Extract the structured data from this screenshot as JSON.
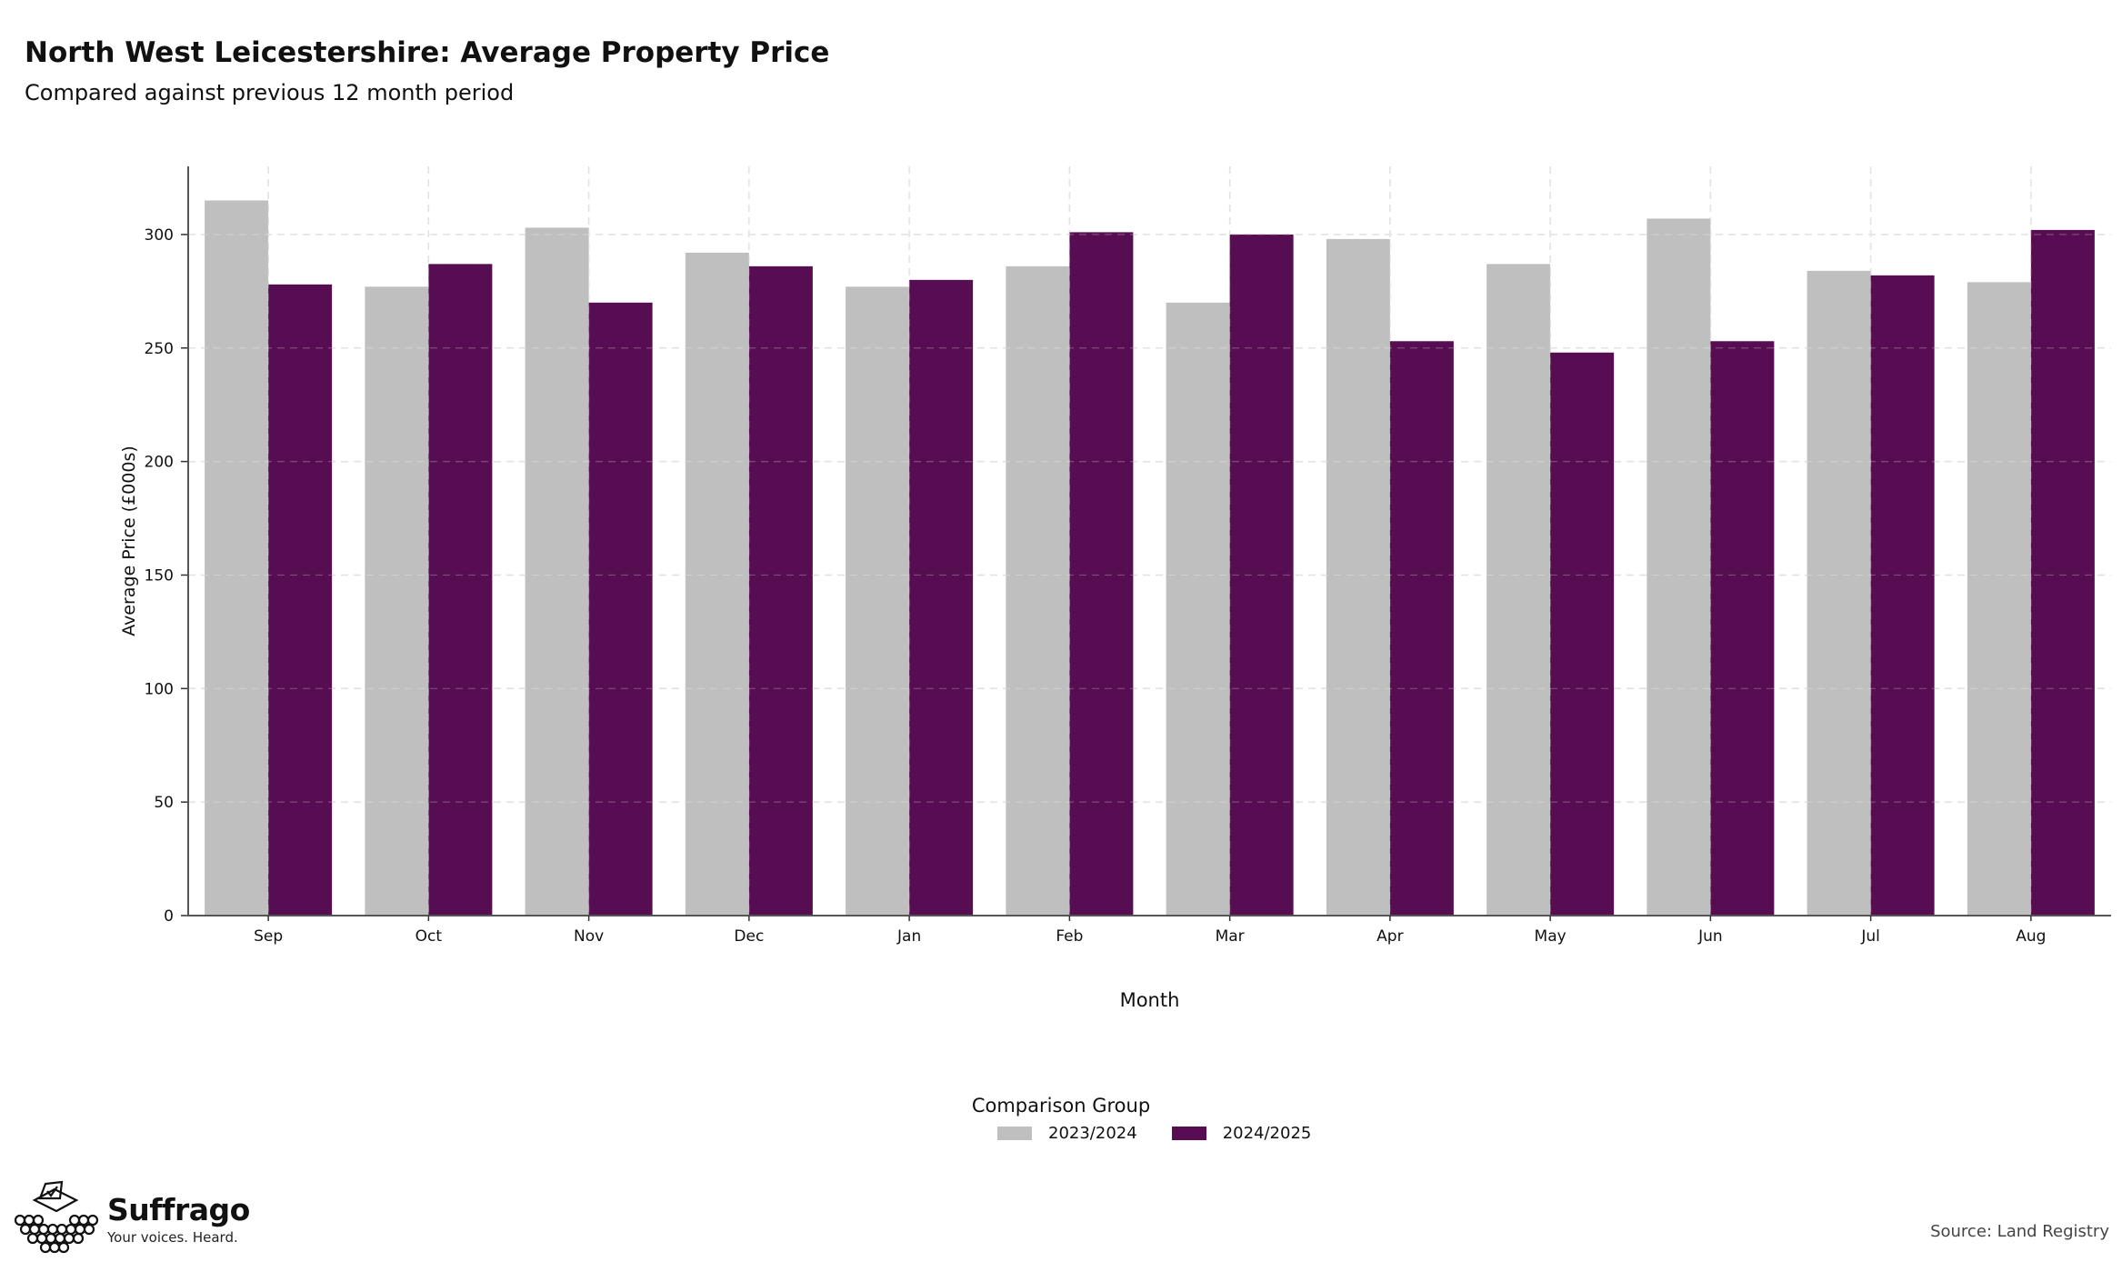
{
  "title": "North West Leicestershire: Average Property Price",
  "subtitle": "Compared against previous 12 month period",
  "source": "Source: Land Registry",
  "brand": {
    "name": "Suffrago",
    "tagline": "Your voices. Heard."
  },
  "legend": {
    "title": "Comparison Group",
    "items": [
      {
        "label": "2023/2024",
        "color": "#bfbfbf"
      },
      {
        "label": "2024/2025",
        "color": "#560d51"
      }
    ]
  },
  "chart_data": {
    "type": "bar",
    "xlabel": "Month",
    "ylabel": "Average Price (£000s)",
    "ylim": [
      0,
      330
    ],
    "yticks": [
      0,
      50,
      100,
      150,
      200,
      250,
      300
    ],
    "categories": [
      "Sep",
      "Oct",
      "Nov",
      "Dec",
      "Jan",
      "Feb",
      "Mar",
      "Apr",
      "May",
      "Jun",
      "Jul",
      "Aug"
    ],
    "grid": true,
    "legend_position": "bottom",
    "series": [
      {
        "name": "2023/2024",
        "color": "#bfbfbf",
        "values": [
          315,
          277,
          303,
          292,
          277,
          286,
          270,
          298,
          287,
          307,
          284,
          279
        ]
      },
      {
        "name": "2024/2025",
        "color": "#560d51",
        "values": [
          278,
          287,
          270,
          286,
          280,
          301,
          300,
          253,
          248,
          253,
          282,
          302
        ]
      }
    ]
  }
}
